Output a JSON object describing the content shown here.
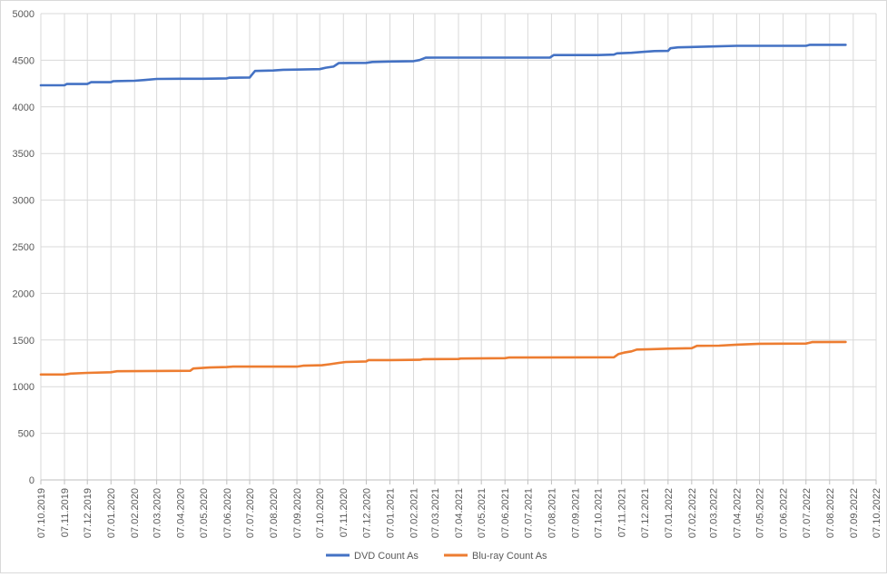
{
  "chart_data": {
    "type": "line",
    "title": "",
    "xlabel": "",
    "ylabel": "",
    "x_ticks": [
      "07.10.2019",
      "07.11.2019",
      "07.12.2019",
      "07.01.2020",
      "07.02.2020",
      "07.03.2020",
      "07.04.2020",
      "07.05.2020",
      "07.06.2020",
      "07.07.2020",
      "07.08.2020",
      "07.09.2020",
      "07.10.2020",
      "07.11.2020",
      "07.12.2020",
      "07.01.2021",
      "07.02.2021",
      "07.03.2021",
      "07.04.2021",
      "07.05.2021",
      "07.06.2021",
      "07.07.2021",
      "07.08.2021",
      "07.09.2021",
      "07.10.2021",
      "07.11.2021",
      "07.12.2021",
      "07.01.2022",
      "07.02.2022",
      "07.03.2022",
      "07.04.2022",
      "07.05.2022",
      "07.06.2022",
      "07.07.2022",
      "07.08.2022",
      "07.09.2022",
      "07.10.2022"
    ],
    "y_ticks": [
      "0",
      "500",
      "1000",
      "1500",
      "2000",
      "2500",
      "3000",
      "3500",
      "4000",
      "4500",
      "5000"
    ],
    "ylim": [
      0,
      5000
    ],
    "xlim": [
      "2019-10-07",
      "2022-10-07"
    ],
    "grid": true,
    "legend_position": "bottom",
    "series": [
      {
        "name": "DVD Count As",
        "color": "#4472c4",
        "points": [
          [
            "2019-10-07",
            4232
          ],
          [
            "2019-11-07",
            4232
          ],
          [
            "2019-11-10",
            4245
          ],
          [
            "2019-12-07",
            4245
          ],
          [
            "2019-12-12",
            4265
          ],
          [
            "2020-01-07",
            4265
          ],
          [
            "2020-01-10",
            4275
          ],
          [
            "2020-02-07",
            4280
          ],
          [
            "2020-02-20",
            4288
          ],
          [
            "2020-03-07",
            4300
          ],
          [
            "2020-04-07",
            4302
          ],
          [
            "2020-05-07",
            4302
          ],
          [
            "2020-06-07",
            4305
          ],
          [
            "2020-06-10",
            4312
          ],
          [
            "2020-07-07",
            4315
          ],
          [
            "2020-07-10",
            4345
          ],
          [
            "2020-07-14",
            4385
          ],
          [
            "2020-08-07",
            4390
          ],
          [
            "2020-08-20",
            4398
          ],
          [
            "2020-09-07",
            4400
          ],
          [
            "2020-10-07",
            4405
          ],
          [
            "2020-10-15",
            4420
          ],
          [
            "2020-10-25",
            4432
          ],
          [
            "2020-11-01",
            4470
          ],
          [
            "2020-12-07",
            4472
          ],
          [
            "2020-12-15",
            4482
          ],
          [
            "2021-01-07",
            4486
          ],
          [
            "2021-02-07",
            4490
          ],
          [
            "2021-02-15",
            4502
          ],
          [
            "2021-02-23",
            4527
          ],
          [
            "2021-03-07",
            4528
          ],
          [
            "2021-08-05",
            4528
          ],
          [
            "2021-08-10",
            4555
          ],
          [
            "2021-10-07",
            4555
          ],
          [
            "2021-10-28",
            4560
          ],
          [
            "2021-11-01",
            4574
          ],
          [
            "2021-11-20",
            4580
          ],
          [
            "2021-12-07",
            4590
          ],
          [
            "2021-12-20",
            4598
          ],
          [
            "2022-01-07",
            4600
          ],
          [
            "2022-01-10",
            4628
          ],
          [
            "2022-01-20",
            4638
          ],
          [
            "2022-03-07",
            4648
          ],
          [
            "2022-04-07",
            4655
          ],
          [
            "2022-07-07",
            4655
          ],
          [
            "2022-07-12",
            4665
          ],
          [
            "2022-08-28",
            4665
          ]
        ]
      },
      {
        "name": "Blu-ray Count As",
        "color": "#ed7d31",
        "points": [
          [
            "2019-10-07",
            1130
          ],
          [
            "2019-11-07",
            1130
          ],
          [
            "2019-11-15",
            1140
          ],
          [
            "2019-12-07",
            1148
          ],
          [
            "2020-01-07",
            1155
          ],
          [
            "2020-01-15",
            1165
          ],
          [
            "2020-04-20",
            1170
          ],
          [
            "2020-04-24",
            1195
          ],
          [
            "2020-05-15",
            1205
          ],
          [
            "2020-06-07",
            1210
          ],
          [
            "2020-06-15",
            1215
          ],
          [
            "2020-09-07",
            1215
          ],
          [
            "2020-09-15",
            1225
          ],
          [
            "2020-10-10",
            1230
          ],
          [
            "2020-10-20",
            1240
          ],
          [
            "2020-11-01",
            1255
          ],
          [
            "2020-11-10",
            1265
          ],
          [
            "2020-12-07",
            1270
          ],
          [
            "2020-12-10",
            1285
          ],
          [
            "2021-01-07",
            1285
          ],
          [
            "2021-02-15",
            1288
          ],
          [
            "2021-02-20",
            1295
          ],
          [
            "2021-04-07",
            1297
          ],
          [
            "2021-04-10",
            1302
          ],
          [
            "2021-06-07",
            1305
          ],
          [
            "2021-06-12",
            1312
          ],
          [
            "2021-10-28",
            1315
          ],
          [
            "2021-11-03",
            1350
          ],
          [
            "2021-11-10",
            1365
          ],
          [
            "2021-11-20",
            1378
          ],
          [
            "2021-11-27",
            1398
          ],
          [
            "2021-12-15",
            1402
          ],
          [
            "2022-01-07",
            1408
          ],
          [
            "2022-02-07",
            1412
          ],
          [
            "2022-02-14",
            1438
          ],
          [
            "2022-03-15",
            1440
          ],
          [
            "2022-04-07",
            1450
          ],
          [
            "2022-05-07",
            1460
          ],
          [
            "2022-07-07",
            1462
          ],
          [
            "2022-07-15",
            1478
          ],
          [
            "2022-08-28",
            1480
          ]
        ]
      }
    ]
  }
}
